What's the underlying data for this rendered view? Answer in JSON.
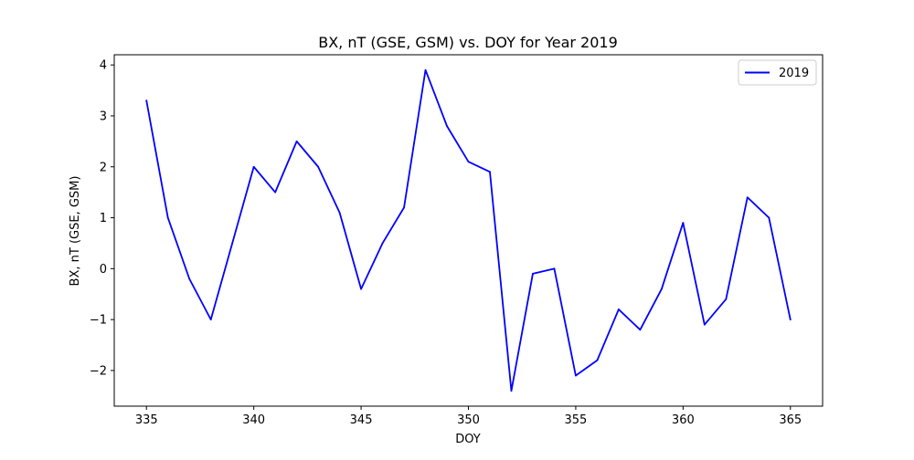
{
  "chart_data": {
    "type": "line",
    "title": "BX, nT (GSE, GSM)  vs. DOY for Year 2019",
    "xlabel": "DOY",
    "ylabel": "BX, nT (GSE, GSM)",
    "xlim": [
      333.5,
      366.5
    ],
    "ylim": [
      -2.7,
      4.2
    ],
    "xticks": [
      335,
      340,
      345,
      350,
      355,
      360,
      365
    ],
    "yticks": [
      -2,
      -1,
      0,
      1,
      2,
      3,
      4
    ],
    "ytick_labels": [
      "−2",
      "−1",
      "0",
      "1",
      "2",
      "3",
      "4"
    ],
    "grid": false,
    "legend_position": "top-right",
    "series": [
      {
        "name": "2019",
        "color": "#0000ff",
        "x": [
          335,
          336,
          337,
          338,
          339,
          340,
          341,
          342,
          343,
          344,
          345,
          346,
          347,
          348,
          349,
          350,
          351,
          352,
          353,
          354,
          355,
          356,
          357,
          358,
          359,
          360,
          361,
          362,
          363,
          364,
          365
        ],
        "y": [
          3.3,
          1.0,
          -0.2,
          -1.0,
          0.5,
          2.0,
          1.5,
          2.5,
          2.0,
          1.1,
          -0.4,
          0.5,
          1.2,
          3.9,
          2.8,
          2.1,
          1.9,
          -2.4,
          -0.1,
          0.0,
          -2.1,
          -1.8,
          -0.8,
          -1.2,
          -0.4,
          0.9,
          -1.1,
          -0.6,
          1.4,
          1.0,
          -1.0
        ]
      }
    ]
  }
}
